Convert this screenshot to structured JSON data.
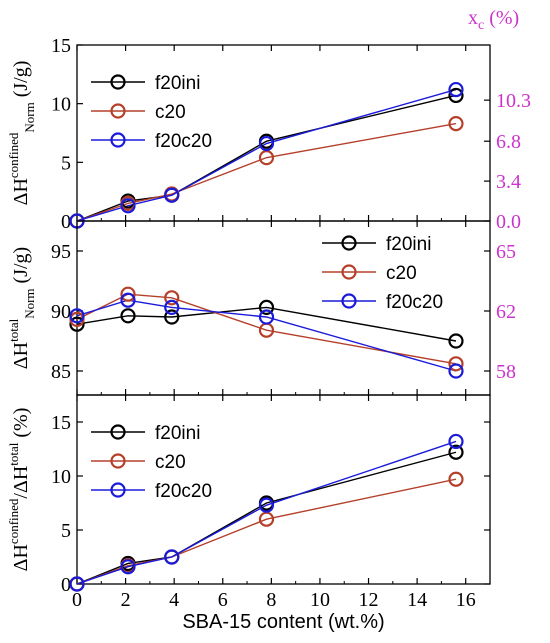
{
  "chart_data": [
    {
      "type": "line",
      "panel": "top",
      "ylim": [
        0,
        15
      ],
      "yticks": [
        0,
        5,
        10,
        15
      ],
      "ylabel": {
        "main": "ΔH",
        "sup": "confined",
        "sub": "Norm",
        "unit": "(J/g)"
      },
      "y2": {
        "label": "x",
        "label_sub": "c",
        "unit": "(%)",
        "ticks": [
          0.0,
          3.4,
          6.8,
          10.3
        ],
        "tick_labels": [
          "0.0",
          "3.4",
          "6.8",
          "10.3"
        ],
        "color": "#cc33cc"
      },
      "legend_position": "top-left",
      "series": [
        {
          "name": "f20ini",
          "color": "#000000",
          "x": [
            0,
            2.1,
            3.9,
            7.8,
            15.6
          ],
          "y": [
            0,
            1.7,
            2.2,
            6.8,
            10.7
          ]
        },
        {
          "name": "c20",
          "color": "#b5402a",
          "x": [
            0,
            2.1,
            3.9,
            7.8,
            15.6
          ],
          "y": [
            0,
            1.5,
            2.3,
            5.4,
            8.3
          ]
        },
        {
          "name": "f20c20",
          "color": "#1a1adb",
          "x": [
            0,
            2.1,
            3.9,
            7.8,
            15.6
          ],
          "y": [
            0,
            1.3,
            2.2,
            6.6,
            11.2
          ]
        }
      ]
    },
    {
      "type": "line",
      "panel": "middle",
      "ylim": [
        83,
        97.5
      ],
      "yticks": [
        85,
        90,
        95
      ],
      "ylabel": {
        "main": "ΔH",
        "sup": "total",
        "sub": "Norm",
        "unit": "(J/g)"
      },
      "y2": {
        "ticks": [
          85,
          90,
          95
        ],
        "tick_labels": [
          "58",
          "62",
          "65"
        ],
        "color": "#cc33cc"
      },
      "legend_position": "top-right",
      "series": [
        {
          "name": "f20ini",
          "color": "#000000",
          "x": [
            0,
            2.1,
            3.9,
            7.8,
            15.6
          ],
          "y": [
            88.9,
            89.6,
            89.5,
            90.3,
            87.5
          ]
        },
        {
          "name": "c20",
          "color": "#b5402a",
          "x": [
            0,
            2.1,
            3.9,
            7.8,
            15.6
          ],
          "y": [
            89.3,
            91.4,
            91.1,
            88.4,
            85.6
          ]
        },
        {
          "name": "f20c20",
          "color": "#1a1adb",
          "x": [
            0,
            2.1,
            3.9,
            7.8,
            15.6
          ],
          "y": [
            89.6,
            90.9,
            90.3,
            89.5,
            85.0
          ]
        }
      ]
    },
    {
      "type": "line",
      "panel": "bottom",
      "ylim": [
        0,
        17.5
      ],
      "yticks": [
        0,
        5,
        10,
        15
      ],
      "ylabel": {
        "main": "ΔH",
        "sup": "confined",
        "mid": "/ΔH",
        "sup2": "total",
        "unit": "(%)"
      },
      "xlabel": "SBA-15 content (wt.%)",
      "xlim": [
        0,
        17
      ],
      "xticks": [
        0,
        2,
        4,
        6,
        8,
        10,
        12,
        14,
        16
      ],
      "legend_position": "top-left",
      "series": [
        {
          "name": "f20ini",
          "color": "#000000",
          "x": [
            0,
            2.1,
            3.9,
            7.8,
            15.6
          ],
          "y": [
            0,
            1.9,
            2.5,
            7.5,
            12.2
          ]
        },
        {
          "name": "c20",
          "color": "#b5402a",
          "x": [
            0,
            2.1,
            3.9,
            7.8,
            15.6
          ],
          "y": [
            0,
            1.7,
            2.5,
            6.0,
            9.7
          ]
        },
        {
          "name": "f20c20",
          "color": "#1a1adb",
          "x": [
            0,
            2.1,
            3.9,
            7.8,
            15.6
          ],
          "y": [
            0,
            1.6,
            2.5,
            7.3,
            13.2
          ]
        }
      ]
    }
  ]
}
